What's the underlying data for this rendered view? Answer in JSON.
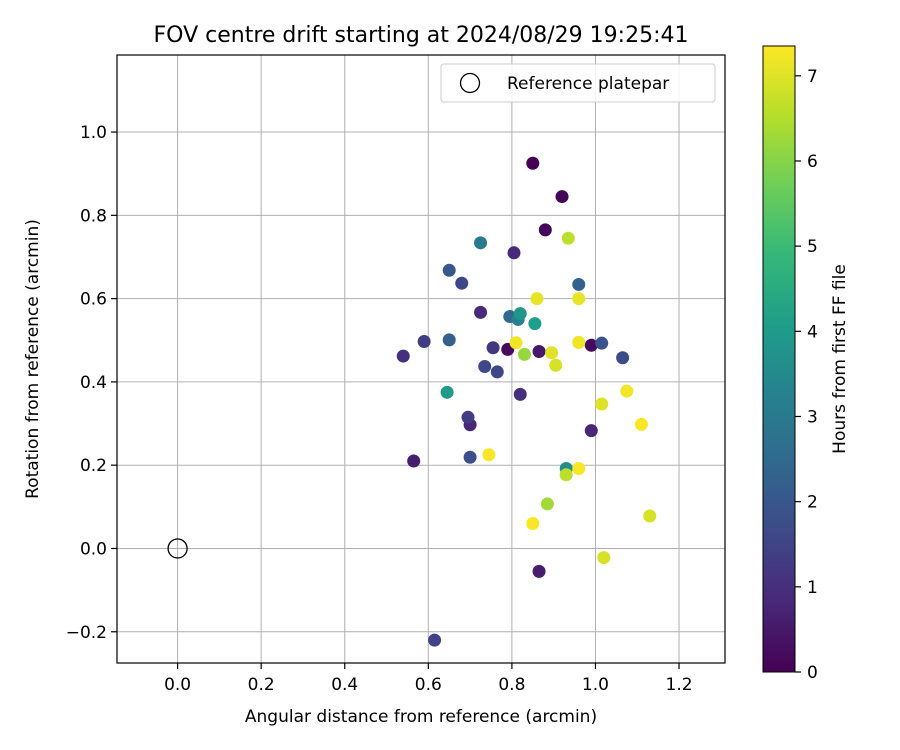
{
  "chart_data": {
    "type": "scatter",
    "title": "FOV centre drift starting at 2024/08/29 19:25:41",
    "xlabel": "Angular distance from reference (arcmin)",
    "ylabel": "Rotation from reference (arcmin)",
    "xlim": [
      -0.145,
      1.31
    ],
    "ylim": [
      -0.275,
      1.185
    ],
    "xticks": [
      0.0,
      0.2,
      0.4,
      0.6,
      0.8,
      1.0,
      1.2
    ],
    "yticks": [
      -0.2,
      0.0,
      0.2,
      0.4,
      0.6,
      0.8,
      1.0
    ],
    "xtick_labels": [
      "0.0",
      "0.2",
      "0.4",
      "0.6",
      "0.8",
      "1.0",
      "1.2"
    ],
    "ytick_labels": [
      "−0.2",
      "0.0",
      "0.2",
      "0.4",
      "0.6",
      "0.8",
      "1.0"
    ],
    "grid": true,
    "legend": {
      "position": "top-right",
      "entries": [
        "Reference platepar"
      ]
    },
    "reference_point": {
      "name": "Reference platepar",
      "x": 0.0,
      "y": 0.0
    },
    "colorbar": {
      "label": "Hours from first FF file",
      "range": [
        0,
        7.35
      ],
      "ticks": [
        0,
        1,
        2,
        3,
        4,
        5,
        6,
        7
      ],
      "colormap": "viridis",
      "colors": [
        "#440154",
        "#482878",
        "#3e4989",
        "#31688e",
        "#26828e",
        "#1f9e89",
        "#35b779",
        "#6ece58",
        "#b5de2b",
        "#fde725"
      ]
    },
    "points": [
      {
        "x": 0.85,
        "y": 0.925,
        "h": 0.0
      },
      {
        "x": 0.92,
        "y": 0.845,
        "h": 0.1
      },
      {
        "x": 0.88,
        "y": 0.765,
        "h": 0.1
      },
      {
        "x": 0.79,
        "y": 0.478,
        "h": 0.2
      },
      {
        "x": 0.99,
        "y": 0.488,
        "h": 0.2
      },
      {
        "x": 0.865,
        "y": 0.473,
        "h": 0.5
      },
      {
        "x": 0.565,
        "y": 0.21,
        "h": 0.6
      },
      {
        "x": 0.865,
        "y": -0.055,
        "h": 0.6
      },
      {
        "x": 0.99,
        "y": 0.283,
        "h": 0.8
      },
      {
        "x": 0.7,
        "y": 0.297,
        "h": 0.8
      },
      {
        "x": 0.725,
        "y": 0.567,
        "h": 0.9
      },
      {
        "x": 0.805,
        "y": 0.71,
        "h": 0.9
      },
      {
        "x": 0.54,
        "y": 0.462,
        "h": 1.0
      },
      {
        "x": 0.82,
        "y": 0.37,
        "h": 1.0
      },
      {
        "x": 0.755,
        "y": 0.482,
        "h": 1.2
      },
      {
        "x": 0.695,
        "y": 0.315,
        "h": 1.3
      },
      {
        "x": 0.59,
        "y": 0.497,
        "h": 1.3
      },
      {
        "x": 0.615,
        "y": -0.22,
        "h": 1.5
      },
      {
        "x": 0.735,
        "y": 0.437,
        "h": 1.6
      },
      {
        "x": 0.765,
        "y": 0.424,
        "h": 1.6
      },
      {
        "x": 0.68,
        "y": 0.637,
        "h": 1.6
      },
      {
        "x": 1.065,
        "y": 0.458,
        "h": 1.7
      },
      {
        "x": 0.7,
        "y": 0.219,
        "h": 1.8
      },
      {
        "x": 1.015,
        "y": 0.493,
        "h": 1.9
      },
      {
        "x": 0.65,
        "y": 0.668,
        "h": 2.0
      },
      {
        "x": 0.65,
        "y": 0.501,
        "h": 2.2
      },
      {
        "x": 0.96,
        "y": 0.634,
        "h": 2.3
      },
      {
        "x": 0.795,
        "y": 0.557,
        "h": 2.5
      },
      {
        "x": 0.725,
        "y": 0.734,
        "h": 3.0
      },
      {
        "x": 0.815,
        "y": 0.55,
        "h": 3.2
      },
      {
        "x": 0.93,
        "y": 0.192,
        "h": 3.6
      },
      {
        "x": 0.82,
        "y": 0.564,
        "h": 3.8
      },
      {
        "x": 0.645,
        "y": 0.375,
        "h": 4.0
      },
      {
        "x": 0.855,
        "y": 0.54,
        "h": 4.1
      },
      {
        "x": 0.83,
        "y": 0.466,
        "h": 6.2
      },
      {
        "x": 0.885,
        "y": 0.107,
        "h": 6.3
      },
      {
        "x": 0.935,
        "y": 0.745,
        "h": 6.6
      },
      {
        "x": 0.93,
        "y": 0.177,
        "h": 6.6
      },
      {
        "x": 1.13,
        "y": 0.078,
        "h": 6.9
      },
      {
        "x": 1.02,
        "y": -0.022,
        "h": 6.9
      },
      {
        "x": 0.905,
        "y": 0.44,
        "h": 6.9
      },
      {
        "x": 0.895,
        "y": 0.47,
        "h": 7.0
      },
      {
        "x": 1.015,
        "y": 0.347,
        "h": 7.0
      },
      {
        "x": 0.86,
        "y": 0.6,
        "h": 7.1
      },
      {
        "x": 0.96,
        "y": 0.6,
        "h": 7.1
      },
      {
        "x": 0.81,
        "y": 0.494,
        "h": 7.2
      },
      {
        "x": 0.96,
        "y": 0.495,
        "h": 7.2
      },
      {
        "x": 1.075,
        "y": 0.378,
        "h": 7.2
      },
      {
        "x": 1.11,
        "y": 0.298,
        "h": 7.3
      },
      {
        "x": 0.745,
        "y": 0.225,
        "h": 7.3
      },
      {
        "x": 0.96,
        "y": 0.192,
        "h": 7.3
      },
      {
        "x": 0.85,
        "y": 0.06,
        "h": 7.3
      }
    ]
  }
}
